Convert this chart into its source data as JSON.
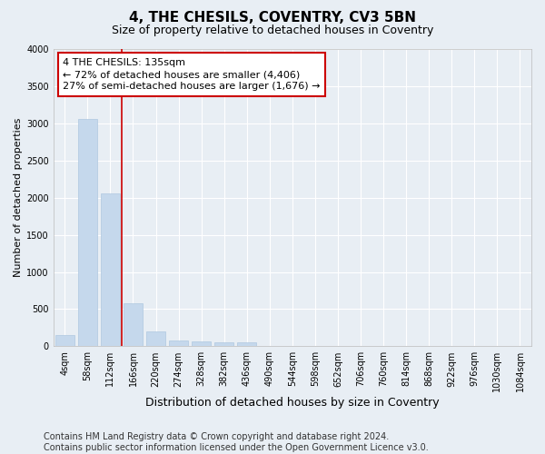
{
  "title": "4, THE CHESILS, COVENTRY, CV3 5BN",
  "subtitle": "Size of property relative to detached houses in Coventry",
  "xlabel": "Distribution of detached houses by size in Coventry",
  "ylabel": "Number of detached properties",
  "bar_color": "#c5d8ec",
  "bar_edge_color": "#aec8e0",
  "categories": [
    "4sqm",
    "58sqm",
    "112sqm",
    "166sqm",
    "220sqm",
    "274sqm",
    "328sqm",
    "382sqm",
    "436sqm",
    "490sqm",
    "544sqm",
    "598sqm",
    "652sqm",
    "706sqm",
    "760sqm",
    "814sqm",
    "868sqm",
    "922sqm",
    "976sqm",
    "1030sqm",
    "1084sqm"
  ],
  "values": [
    150,
    3060,
    2060,
    575,
    205,
    75,
    60,
    50,
    50,
    0,
    0,
    0,
    0,
    0,
    0,
    0,
    0,
    0,
    0,
    0,
    0
  ],
  "ylim": [
    0,
    4000
  ],
  "yticks": [
    0,
    500,
    1000,
    1500,
    2000,
    2500,
    3000,
    3500,
    4000
  ],
  "red_line_x": 2.5,
  "annotation_text": "4 THE CHESILS: 135sqm\n← 72% of detached houses are smaller (4,406)\n27% of semi-detached houses are larger (1,676) →",
  "annotation_box_color": "#ffffff",
  "annotation_border_color": "#cc0000",
  "footer_line1": "Contains HM Land Registry data © Crown copyright and database right 2024.",
  "footer_line2": "Contains public sector information licensed under the Open Government Licence v3.0.",
  "background_color": "#e8eef4",
  "grid_color": "#ffffff",
  "title_fontsize": 11,
  "subtitle_fontsize": 9,
  "ylabel_fontsize": 8,
  "xlabel_fontsize": 9,
  "tick_fontsize": 7,
  "footer_fontsize": 7,
  "annotation_fontsize": 8
}
